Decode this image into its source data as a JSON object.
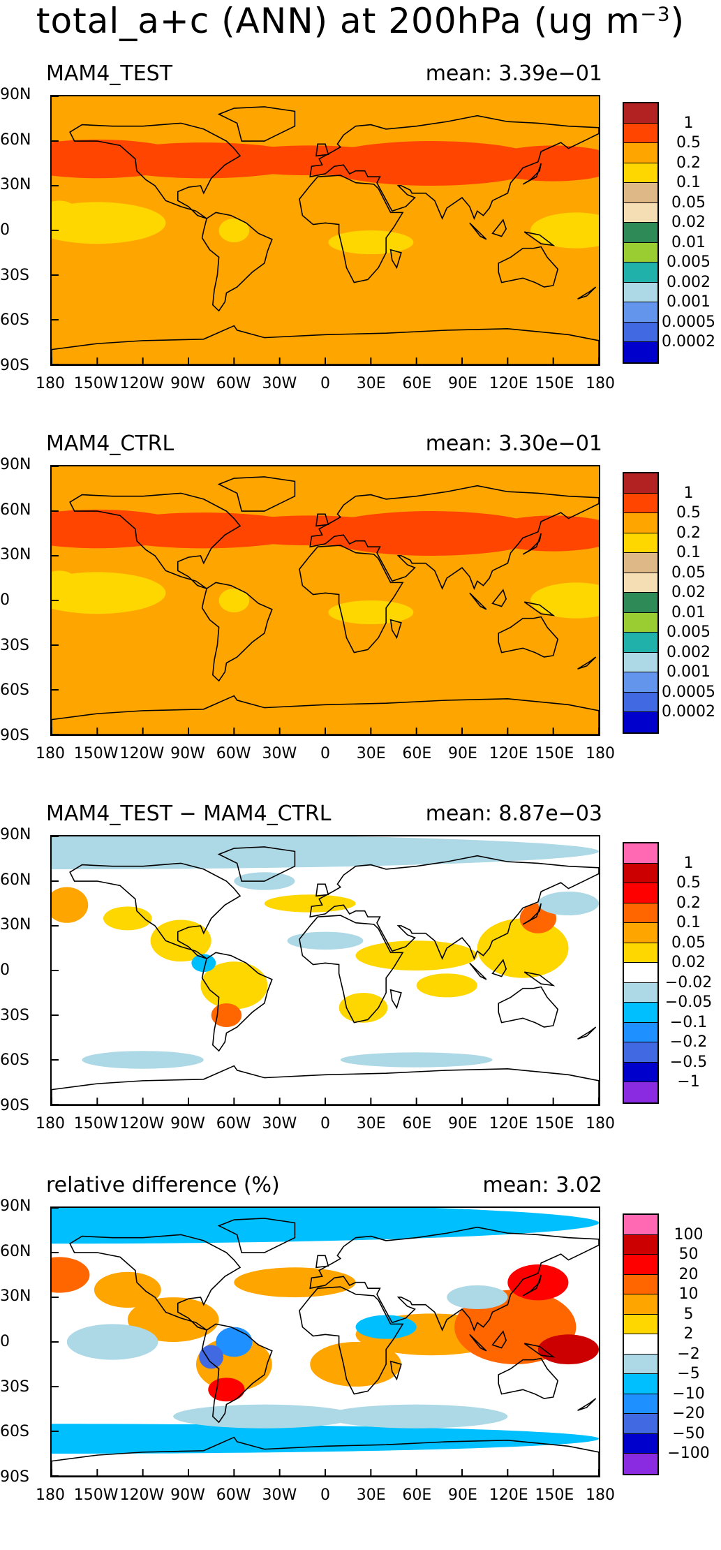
{
  "title": {
    "text": "total_a+c (ANN) at 200hPa (ug m",
    "sup": "−3",
    "close": ")"
  },
  "lat_ticks": [
    "90N",
    "60N",
    "30N",
    "0",
    "30S",
    "60S",
    "90S"
  ],
  "lon_ticks": [
    "180",
    "150W",
    "120W",
    "90W",
    "60W",
    "30W",
    "0",
    "30E",
    "60E",
    "90E",
    "120E",
    "150E",
    "180"
  ],
  "panels": [
    {
      "label": "MAM4_TEST",
      "mean": "mean: 3.39e−01",
      "kind": "abs",
      "colorbar": {
        "colors": [
          "#b22222",
          "#ff4500",
          "#ffa500",
          "#ffd700",
          "#deb887",
          "#f5deb3",
          "#2e8b57",
          "#9acd32",
          "#20b2aa",
          "#add8e6",
          "#6495ed",
          "#4169e1",
          "#0000cd"
        ],
        "labels": [
          "1",
          "0.5",
          "0.2",
          "0.1",
          "0.05",
          "0.02",
          "0.01",
          "0.005",
          "0.002",
          "0.001",
          "0.0005",
          "0.0002"
        ]
      }
    },
    {
      "label": "MAM4_CTRL",
      "mean": "mean: 3.30e−01",
      "kind": "abs",
      "colorbar": {
        "colors": [
          "#b22222",
          "#ff4500",
          "#ffa500",
          "#ffd700",
          "#deb887",
          "#f5deb3",
          "#2e8b57",
          "#9acd32",
          "#20b2aa",
          "#add8e6",
          "#6495ed",
          "#4169e1",
          "#0000cd"
        ],
        "labels": [
          "1",
          "0.5",
          "0.2",
          "0.1",
          "0.05",
          "0.02",
          "0.01",
          "0.005",
          "0.002",
          "0.001",
          "0.0005",
          "0.0002"
        ]
      }
    },
    {
      "label": "MAM4_TEST − MAM4_CTRL",
      "mean": "mean: 8.87e−03",
      "kind": "diff",
      "colorbar": {
        "colors": [
          "#ff69b4",
          "#cc0000",
          "#ff0000",
          "#ff6600",
          "#ffa500",
          "#ffd700",
          "#ffffff",
          "#add8e6",
          "#00bfff",
          "#1e90ff",
          "#4169e1",
          "#0000cd",
          "#8a2be2"
        ],
        "labels": [
          "1",
          "0.5",
          "0.2",
          "0.1",
          "0.05",
          "0.02",
          "−0.02",
          "−0.05",
          "−0.1",
          "−0.2",
          "−0.5",
          "−1"
        ]
      }
    },
    {
      "label": "relative difference (%)",
      "mean": "mean:   3.02",
      "kind": "rel",
      "colorbar": {
        "colors": [
          "#ff69b4",
          "#cc0000",
          "#ff0000",
          "#ff6600",
          "#ffa500",
          "#ffd700",
          "#ffffff",
          "#add8e6",
          "#00bfff",
          "#1e90ff",
          "#4169e1",
          "#0000cd",
          "#8a2be2"
        ],
        "labels": [
          "100",
          "50",
          "20",
          "10",
          "5",
          "2",
          "−2",
          "−5",
          "−10",
          "−20",
          "−50",
          "−100"
        ]
      }
    }
  ]
}
